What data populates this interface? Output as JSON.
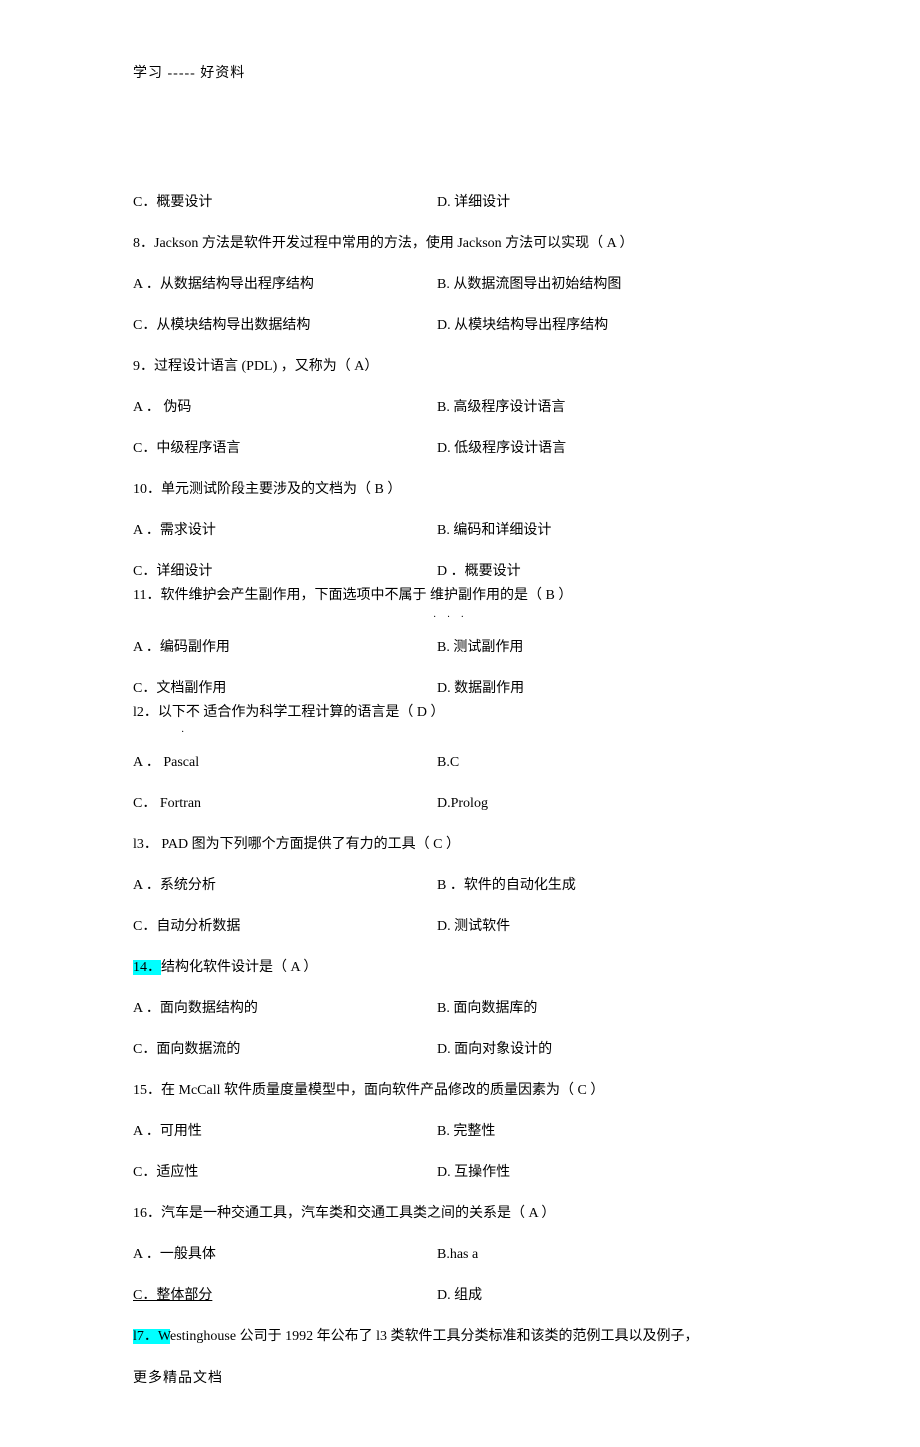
{
  "header": "学习 ----- 好资料",
  "footer": "更多精品文档",
  "rows": [
    {
      "left": "C．概要设计",
      "right": "D. 详细设计"
    },
    {
      "full": "8．Jackson 方法是软件开发过程中常用的方法，使用      Jackson 方法可以实现（      A   ）"
    },
    {
      "left": "A ．从数据结构导出程序结构",
      "right": "B. 从数据流图导出初始结构图"
    },
    {
      "left": "C．从模块结构导出数据结构",
      "right": "D. 从模块结构导出程序结构"
    },
    {
      "full": "9．过程设计语言  (PDL) ，又称为（      A）"
    },
    {
      "left": "A ． 伪码",
      "right": "B. 高级程序设计语言"
    },
    {
      "left": "C．中级程序语言",
      "right": "D. 低级程序设计语言"
    },
    {
      "full": "10．单元测试阶段主要涉及的文档为（        B    ）"
    },
    {
      "left": "A ．需求设计",
      "right": "B. 编码和详细设计"
    },
    {
      "left": "C．详细设计",
      "right": "D ．概要设计",
      "tight": true
    },
    {
      "full": "11．软件维护会产生副作用，下面选项中不属于     维护副作用的是（      B         ）",
      "dots_after": true
    },
    {
      "left": "A ．编码副作用",
      "right": "B. 测试副作用"
    },
    {
      "left": "C．文档副作用",
      "right": "D. 数据副作用",
      "tight": true
    },
    {
      "full": "l2．以下不 适合作为科学工程计算的语言是（       D      ）",
      "dot_under": true
    },
    {
      "left": "A ． Pascal",
      "right": "B.C"
    },
    {
      "left": "C． Fortran",
      "right": "D.Prolog"
    },
    {
      "full": "l3． PAD 图为下列哪个方面提供了有力的工具（        C       ）"
    },
    {
      "left": "A ．系统分析",
      "right": "B ．软件的自动化生成"
    },
    {
      "left": "C．自动分析数据",
      "right": "D. 测试软件"
    },
    {
      "full_hl_prefix": "14．",
      "full_rest": "结构化软件设计是（       A   ）"
    },
    {
      "left": "A ．面向数据结构的",
      "right": "B. 面向数据库的"
    },
    {
      "left": "C．面向数据流的",
      "right": "D. 面向对象设计的"
    },
    {
      "full": "15．在 McCall 软件质量度量模型中，面向软件产品修改的质量因素为（           C        ）"
    },
    {
      "left": "A ．可用性",
      "right": "B. 完整性"
    },
    {
      "left": "C．适应性",
      "right": "D. 互操作性"
    },
    {
      "full": "16．汽车是一种交通工具，汽车类和交通工具类之间的关系是（          A       ）"
    },
    {
      "left": "A ．一般具体",
      "right": "B.has a"
    },
    {
      "left_underline": "C．整体部分",
      "right": "D. 组成"
    },
    {
      "full_hl_prefix": "l7．W",
      "full_rest": "estinghouse 公司于 1992 年公布了   l3 类软件工具分类标准和该类的范例工具以及例子，"
    }
  ]
}
